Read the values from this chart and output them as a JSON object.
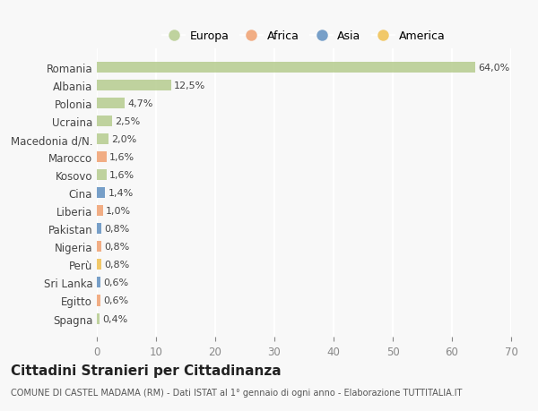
{
  "countries": [
    "Romania",
    "Albania",
    "Polonia",
    "Ucraina",
    "Macedonia d/N.",
    "Marocco",
    "Kosovo",
    "Cina",
    "Liberia",
    "Pakistan",
    "Nigeria",
    "Perù",
    "Sri Lanka",
    "Egitto",
    "Spagna"
  ],
  "values": [
    64.0,
    12.5,
    4.7,
    2.5,
    2.0,
    1.6,
    1.6,
    1.4,
    1.0,
    0.8,
    0.8,
    0.8,
    0.6,
    0.6,
    0.4
  ],
  "labels": [
    "64,0%",
    "12,5%",
    "4,7%",
    "2,5%",
    "2,0%",
    "1,6%",
    "1,6%",
    "1,4%",
    "1,0%",
    "0,8%",
    "0,8%",
    "0,8%",
    "0,6%",
    "0,6%",
    "0,4%"
  ],
  "continents": [
    "Europa",
    "Europa",
    "Europa",
    "Europa",
    "Europa",
    "Africa",
    "Europa",
    "Asia",
    "Africa",
    "Asia",
    "Africa",
    "America",
    "Asia",
    "Africa",
    "Europa"
  ],
  "continent_colors": {
    "Europa": "#b5cc8e",
    "Africa": "#f0a070",
    "Asia": "#6090c0",
    "America": "#f0c050"
  },
  "legend_order": [
    "Europa",
    "Africa",
    "Asia",
    "America"
  ],
  "xlim": [
    0,
    70
  ],
  "xticks": [
    0,
    10,
    20,
    30,
    40,
    50,
    60,
    70
  ],
  "title": "Cittadini Stranieri per Cittadinanza",
  "subtitle": "COMUNE DI CASTEL MADAMA (RM) - Dati ISTAT al 1° gennaio di ogni anno - Elaborazione TUTTITALIA.IT",
  "bg_color": "#f8f8f8",
  "grid_color": "#ffffff",
  "bar_height": 0.6
}
